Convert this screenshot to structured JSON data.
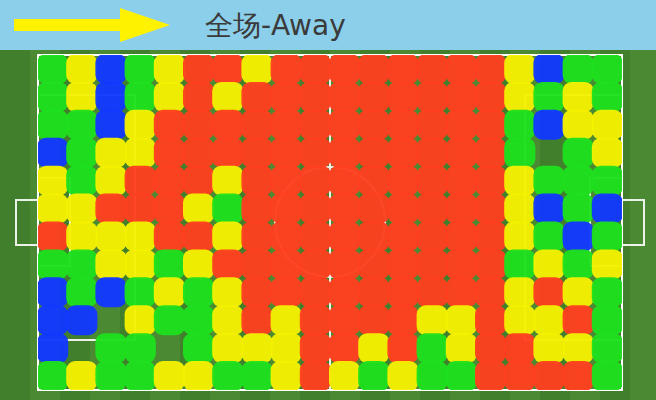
{
  "chart_data": {
    "type": "heatmap",
    "title": "全场-Away",
    "x": [
      2.5,
      7.5,
      12.5,
      17.5,
      22.5,
      27.5,
      32.5,
      37.5,
      42.5,
      47.5,
      52.5,
      57.5,
      62.5,
      67.5,
      72.5,
      77.5,
      82.5,
      87.5,
      92.5,
      97.5
    ],
    "y": [
      57.5,
      52.5,
      47.5,
      42.5,
      37.5,
      32.5,
      27.5,
      22.5,
      17.5,
      12.5,
      7.5,
      2.5
    ],
    "values": [
      [
        2,
        3,
        1,
        2,
        3,
        4,
        4,
        3,
        4,
        4,
        4,
        4,
        4,
        4,
        4,
        4,
        3,
        1,
        2,
        2
      ],
      [
        2,
        3,
        1,
        2,
        3,
        4,
        3,
        4,
        4,
        4,
        4,
        4,
        4,
        4,
        4,
        4,
        3,
        2,
        3,
        2
      ],
      [
        2,
        2,
        1,
        3,
        4,
        4,
        4,
        4,
        4,
        4,
        4,
        4,
        4,
        4,
        4,
        4,
        2,
        1,
        3,
        3
      ],
      [
        1,
        2,
        3,
        3,
        4,
        4,
        4,
        4,
        4,
        4,
        4,
        4,
        4,
        4,
        4,
        4,
        2,
        null,
        2,
        3
      ],
      [
        3,
        2,
        3,
        4,
        4,
        4,
        3,
        4,
        4,
        4,
        4,
        4,
        4,
        4,
        4,
        4,
        3,
        2,
        2,
        2
      ],
      [
        3,
        3,
        4,
        4,
        4,
        3,
        2,
        4,
        4,
        4,
        4,
        4,
        4,
        4,
        4,
        4,
        3,
        1,
        2,
        1
      ],
      [
        4,
        3,
        3,
        3,
        4,
        4,
        3,
        4,
        4,
        4,
        4,
        4,
        4,
        4,
        4,
        4,
        3,
        2,
        1,
        2
      ],
      [
        2,
        2,
        3,
        3,
        2,
        3,
        4,
        4,
        4,
        4,
        4,
        4,
        4,
        4,
        4,
        4,
        2,
        3,
        2,
        3
      ],
      [
        1,
        2,
        1,
        2,
        3,
        2,
        3,
        4,
        4,
        4,
        4,
        4,
        4,
        4,
        4,
        4,
        3,
        4,
        3,
        2
      ],
      [
        1,
        1,
        null,
        3,
        2,
        2,
        3,
        4,
        3,
        4,
        4,
        4,
        4,
        3,
        3,
        4,
        3,
        3,
        4,
        2
      ],
      [
        1,
        null,
        2,
        2,
        null,
        2,
        3,
        3,
        3,
        4,
        4,
        3,
        4,
        2,
        3,
        4,
        4,
        3,
        3,
        2
      ],
      [
        2,
        3,
        2,
        2,
        3,
        3,
        2,
        2,
        3,
        4,
        3,
        2,
        3,
        2,
        2,
        4,
        4,
        4,
        4,
        2
      ]
    ],
    "xlim": [
      0,
      100
    ],
    "ylim": [
      0,
      60
    ],
    "tick_labels": false,
    "grid": false
  }
}
